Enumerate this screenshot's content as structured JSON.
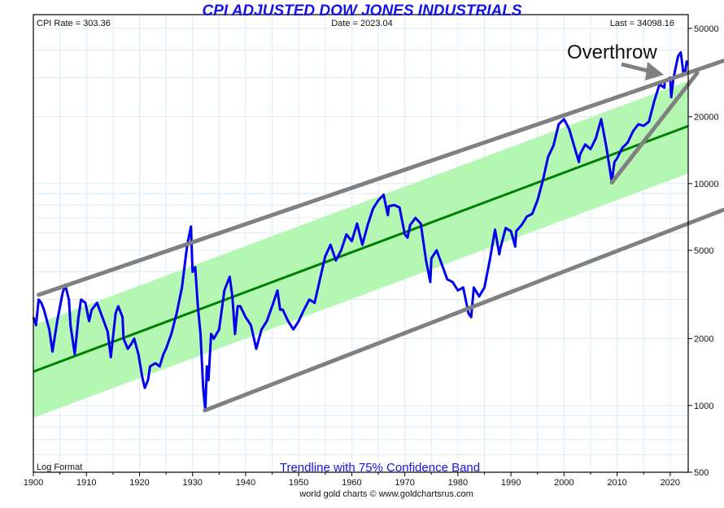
{
  "chart_data": {
    "type": "line",
    "title": "CPI ADJUSTED DOW JONES INDUSTRIALS",
    "info": {
      "cpi_rate": "CPI Rate = 303.36",
      "date": "Date = 2023.04",
      "last": "Last = 34098.16"
    },
    "scale_label": "Log Format",
    "subtitle": "Trendline with 75% Confidence Band",
    "footer": "world gold charts © www.goldchartsrus.com",
    "annotation": "Overthrow",
    "xlim": [
      1900,
      2023.4
    ],
    "ylim": [
      500,
      57700
    ],
    "yscale": "log",
    "x_ticks": [
      "1900",
      "1910",
      "1920",
      "1930",
      "1940",
      "1950",
      "1960",
      "1970",
      "1980",
      "1990",
      "2000",
      "2010",
      "2020"
    ],
    "y_ticks": [
      "50000",
      "20000",
      "10000",
      "5000",
      "2000",
      "1000",
      "500"
    ],
    "grid": true,
    "colors": {
      "series": "#0000ee",
      "trend": "#008000",
      "band": "#b3f7b3",
      "channel": "#808080",
      "grid": "#dcecf7"
    },
    "series": [
      {
        "name": "CPI adjusted DJIA",
        "points": [
          [
            1900,
            2500
          ],
          [
            1900.5,
            2300
          ],
          [
            1901,
            3000
          ],
          [
            1901.5,
            2900
          ],
          [
            1902,
            2700
          ],
          [
            1903,
            2200
          ],
          [
            1903.6,
            1750
          ],
          [
            1904.5,
            2400
          ],
          [
            1905.5,
            3200
          ],
          [
            1906,
            3500
          ],
          [
            1906.7,
            3000
          ],
          [
            1907,
            2300
          ],
          [
            1907.8,
            1700
          ],
          [
            1908.5,
            2500
          ],
          [
            1909,
            3000
          ],
          [
            1909.8,
            2900
          ],
          [
            1910.5,
            2400
          ],
          [
            1911,
            2700
          ],
          [
            1912,
            2900
          ],
          [
            1913,
            2500
          ],
          [
            1914,
            2150
          ],
          [
            1914.6,
            1650
          ],
          [
            1915.5,
            2600
          ],
          [
            1916,
            2800
          ],
          [
            1916.8,
            2500
          ],
          [
            1917,
            2000
          ],
          [
            1917.8,
            1800
          ],
          [
            1918.5,
            1900
          ],
          [
            1919,
            2000
          ],
          [
            1919.8,
            1700
          ],
          [
            1920.5,
            1350
          ],
          [
            1921,
            1200
          ],
          [
            1921.6,
            1300
          ],
          [
            1922,
            1500
          ],
          [
            1923,
            1550
          ],
          [
            1923.8,
            1500
          ],
          [
            1924.5,
            1700
          ],
          [
            1925,
            1800
          ],
          [
            1926,
            2100
          ],
          [
            1927,
            2600
          ],
          [
            1928,
            3400
          ],
          [
            1929,
            5300
          ],
          [
            1929.7,
            6400
          ],
          [
            1930,
            4000
          ],
          [
            1930.5,
            4200
          ],
          [
            1931,
            2800
          ],
          [
            1931.5,
            2100
          ],
          [
            1932,
            1200
          ],
          [
            1932.4,
            950
          ],
          [
            1932.7,
            1500
          ],
          [
            1933,
            1300
          ],
          [
            1933.5,
            2100
          ],
          [
            1934,
            2000
          ],
          [
            1935,
            2200
          ],
          [
            1936,
            3300
          ],
          [
            1937,
            3800
          ],
          [
            1937.5,
            3100
          ],
          [
            1938,
            2100
          ],
          [
            1938.5,
            2800
          ],
          [
            1939,
            2800
          ],
          [
            1940,
            2500
          ],
          [
            1941,
            2300
          ],
          [
            1942,
            1800
          ],
          [
            1943,
            2200
          ],
          [
            1944,
            2400
          ],
          [
            1945,
            2800
          ],
          [
            1946,
            3300
          ],
          [
            1946.5,
            2700
          ],
          [
            1947,
            2700
          ],
          [
            1948,
            2400
          ],
          [
            1949,
            2200
          ],
          [
            1950,
            2400
          ],
          [
            1951,
            2700
          ],
          [
            1952,
            3000
          ],
          [
            1953,
            2900
          ],
          [
            1954,
            3700
          ],
          [
            1955,
            4700
          ],
          [
            1956,
            5300
          ],
          [
            1957,
            4500
          ],
          [
            1958,
            5000
          ],
          [
            1959,
            5900
          ],
          [
            1960,
            5500
          ],
          [
            1961,
            6600
          ],
          [
            1962,
            5300
          ],
          [
            1963,
            6500
          ],
          [
            1964,
            7700
          ],
          [
            1965,
            8400
          ],
          [
            1966,
            8900
          ],
          [
            1966.8,
            7200
          ],
          [
            1967,
            7900
          ],
          [
            1968,
            8000
          ],
          [
            1969,
            7800
          ],
          [
            1970,
            5900
          ],
          [
            1970.5,
            5700
          ],
          [
            1971,
            6500
          ],
          [
            1972,
            7000
          ],
          [
            1973,
            6600
          ],
          [
            1974,
            4500
          ],
          [
            1974.8,
            3600
          ],
          [
            1975,
            4600
          ],
          [
            1976,
            5000
          ],
          [
            1977,
            4300
          ],
          [
            1978,
            3700
          ],
          [
            1979,
            3600
          ],
          [
            1980,
            3300
          ],
          [
            1981,
            3400
          ],
          [
            1982,
            2600
          ],
          [
            1982.5,
            2500
          ],
          [
            1983,
            3400
          ],
          [
            1984,
            3100
          ],
          [
            1985,
            3400
          ],
          [
            1986,
            4500
          ],
          [
            1987,
            6200
          ],
          [
            1987.8,
            4800
          ],
          [
            1988,
            5100
          ],
          [
            1989,
            6300
          ],
          [
            1990,
            6100
          ],
          [
            1990.8,
            5200
          ],
          [
            1991,
            6100
          ],
          [
            1992,
            6500
          ],
          [
            1993,
            7100
          ],
          [
            1994,
            7300
          ],
          [
            1995,
            8400
          ],
          [
            1996,
            10300
          ],
          [
            1997,
            13200
          ],
          [
            1998,
            14800
          ],
          [
            1999,
            18500
          ],
          [
            2000,
            19500
          ],
          [
            2000.5,
            18500
          ],
          [
            2001,
            17500
          ],
          [
            2002,
            14500
          ],
          [
            2002.8,
            12500
          ],
          [
            2003,
            13500
          ],
          [
            2004,
            15000
          ],
          [
            2005,
            14300
          ],
          [
            2006,
            16000
          ],
          [
            2007,
            19500
          ],
          [
            2008,
            14500
          ],
          [
            2009,
            10200
          ],
          [
            2009.5,
            12500
          ],
          [
            2010,
            13000
          ],
          [
            2011,
            14500
          ],
          [
            2012,
            15300
          ],
          [
            2013,
            17200
          ],
          [
            2014,
            18500
          ],
          [
            2015,
            18200
          ],
          [
            2016,
            19000
          ],
          [
            2017,
            23500
          ],
          [
            2018,
            28000
          ],
          [
            2018.9,
            27000
          ],
          [
            2019,
            29000
          ],
          [
            2020,
            30000
          ],
          [
            2020.2,
            24500
          ],
          [
            2020.6,
            29500
          ],
          [
            2021,
            33000
          ],
          [
            2021.5,
            37500
          ],
          [
            2022,
            39000
          ],
          [
            2022.5,
            31500
          ],
          [
            2022.8,
            31000
          ],
          [
            2023.1,
            35500
          ],
          [
            2023.3,
            34098
          ]
        ]
      },
      {
        "name": "Trendline",
        "points": [
          [
            1900,
            1420
          ],
          [
            2023.4,
            18150
          ]
        ]
      }
    ],
    "confidence_band": {
      "level": "75%",
      "lower": [
        [
          1900,
          880
        ],
        [
          2023.4,
          11100
        ]
      ],
      "upper": [
        [
          1900,
          2300
        ],
        [
          2023.4,
          29000
        ]
      ]
    },
    "channel_lines": [
      {
        "name": "upper-channel",
        "points": [
          [
            1901,
            3150
          ],
          [
            2030,
            35700
          ]
        ]
      },
      {
        "name": "lower-channel",
        "points": [
          [
            1932.3,
            950
          ],
          [
            2030,
            7600
          ]
        ]
      },
      {
        "name": "rising-support",
        "points": [
          [
            2009,
            10100
          ],
          [
            2025.1,
            31500
          ]
        ]
      }
    ]
  }
}
